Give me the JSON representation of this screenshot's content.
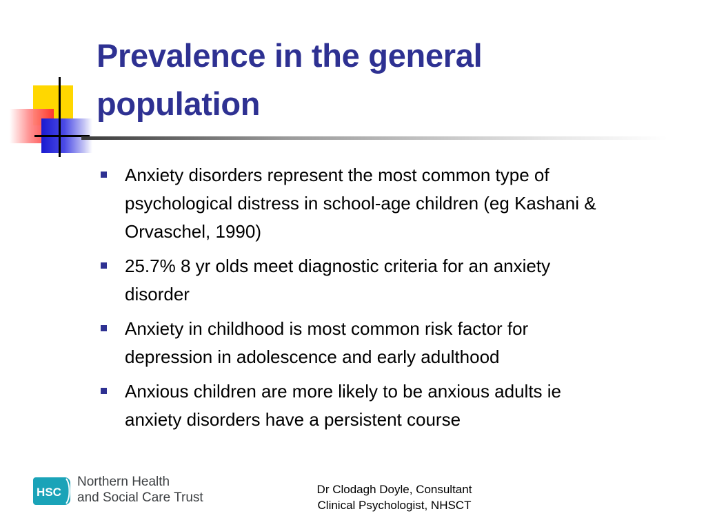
{
  "slide": {
    "title_lines": [
      "Prevalence in the general",
      "population"
    ],
    "bullets": [
      {
        "lines": [
          "Anxiety disorders represent the most common type of",
          "psychological distress in school-age children (eg Kashani &",
          "Orvaschel, 1990)"
        ]
      },
      {
        "lines": [
          "25.7% 8 yr olds meet diagnostic criteria for an anxiety",
          "disorder"
        ]
      },
      {
        "lines": [
          "Anxiety in childhood is most common risk factor for",
          "depression in adolescence and early adulthood"
        ]
      },
      {
        "lines": [
          "Anxious children are more likely to be anxious adults ie",
          "anxiety disorders have a persistent course"
        ]
      }
    ]
  },
  "logo": {
    "mark_text": "HSC",
    "line1": "Northern Health",
    "line2": "and Social Care Trust",
    "icon": "hsc-logo-icon",
    "color": "#1aa3b8"
  },
  "footer": {
    "line1": "Dr Clodagh Doyle, Consultant",
    "line2": "Clinical Psychologist, NHSCT"
  },
  "colors": {
    "title": "#2e3192",
    "bullet_marker": "#2e3192",
    "deco_yellow": "#ffd700",
    "deco_red": "#ff3030",
    "deco_blue": "#1a1ad0"
  }
}
